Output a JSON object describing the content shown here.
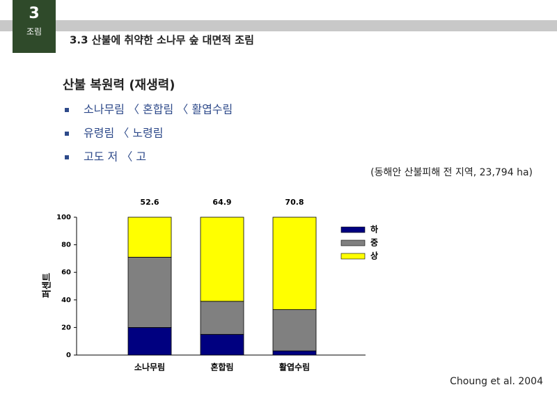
{
  "header": {
    "number": "3",
    "section": "조림",
    "title": "3.3 산불에 취약한 소나무 숲 대면적 조림"
  },
  "subtitle": "산불 복원력 (재생력)",
  "bullets": [
    "소나무림 〈 혼합림 〈 활엽수림",
    "유령림 〈 노령림",
    "고도 저 〈 고"
  ],
  "note": "(동해안 산불피해 전 지역, 23,794 ha)",
  "citation": "Choung et al. 2004",
  "chart_data": {
    "type": "stacked_bar",
    "categories": [
      "소나무림",
      "혼합림",
      "활엽수림"
    ],
    "annotations": [
      "52.6",
      "64.9",
      "70.8"
    ],
    "series": [
      {
        "name": "하",
        "color": "#000080",
        "values": [
          20,
          15,
          3
        ]
      },
      {
        "name": "중",
        "color": "#808080",
        "values": [
          51,
          24,
          30
        ]
      },
      {
        "name": "상",
        "color": "#ffff00",
        "values": [
          29,
          61,
          67
        ]
      }
    ],
    "ylabel": "퍼센트",
    "ylim": [
      0,
      100
    ],
    "yticks": [
      0,
      20,
      40,
      60,
      80,
      100
    ],
    "legend": "right"
  }
}
